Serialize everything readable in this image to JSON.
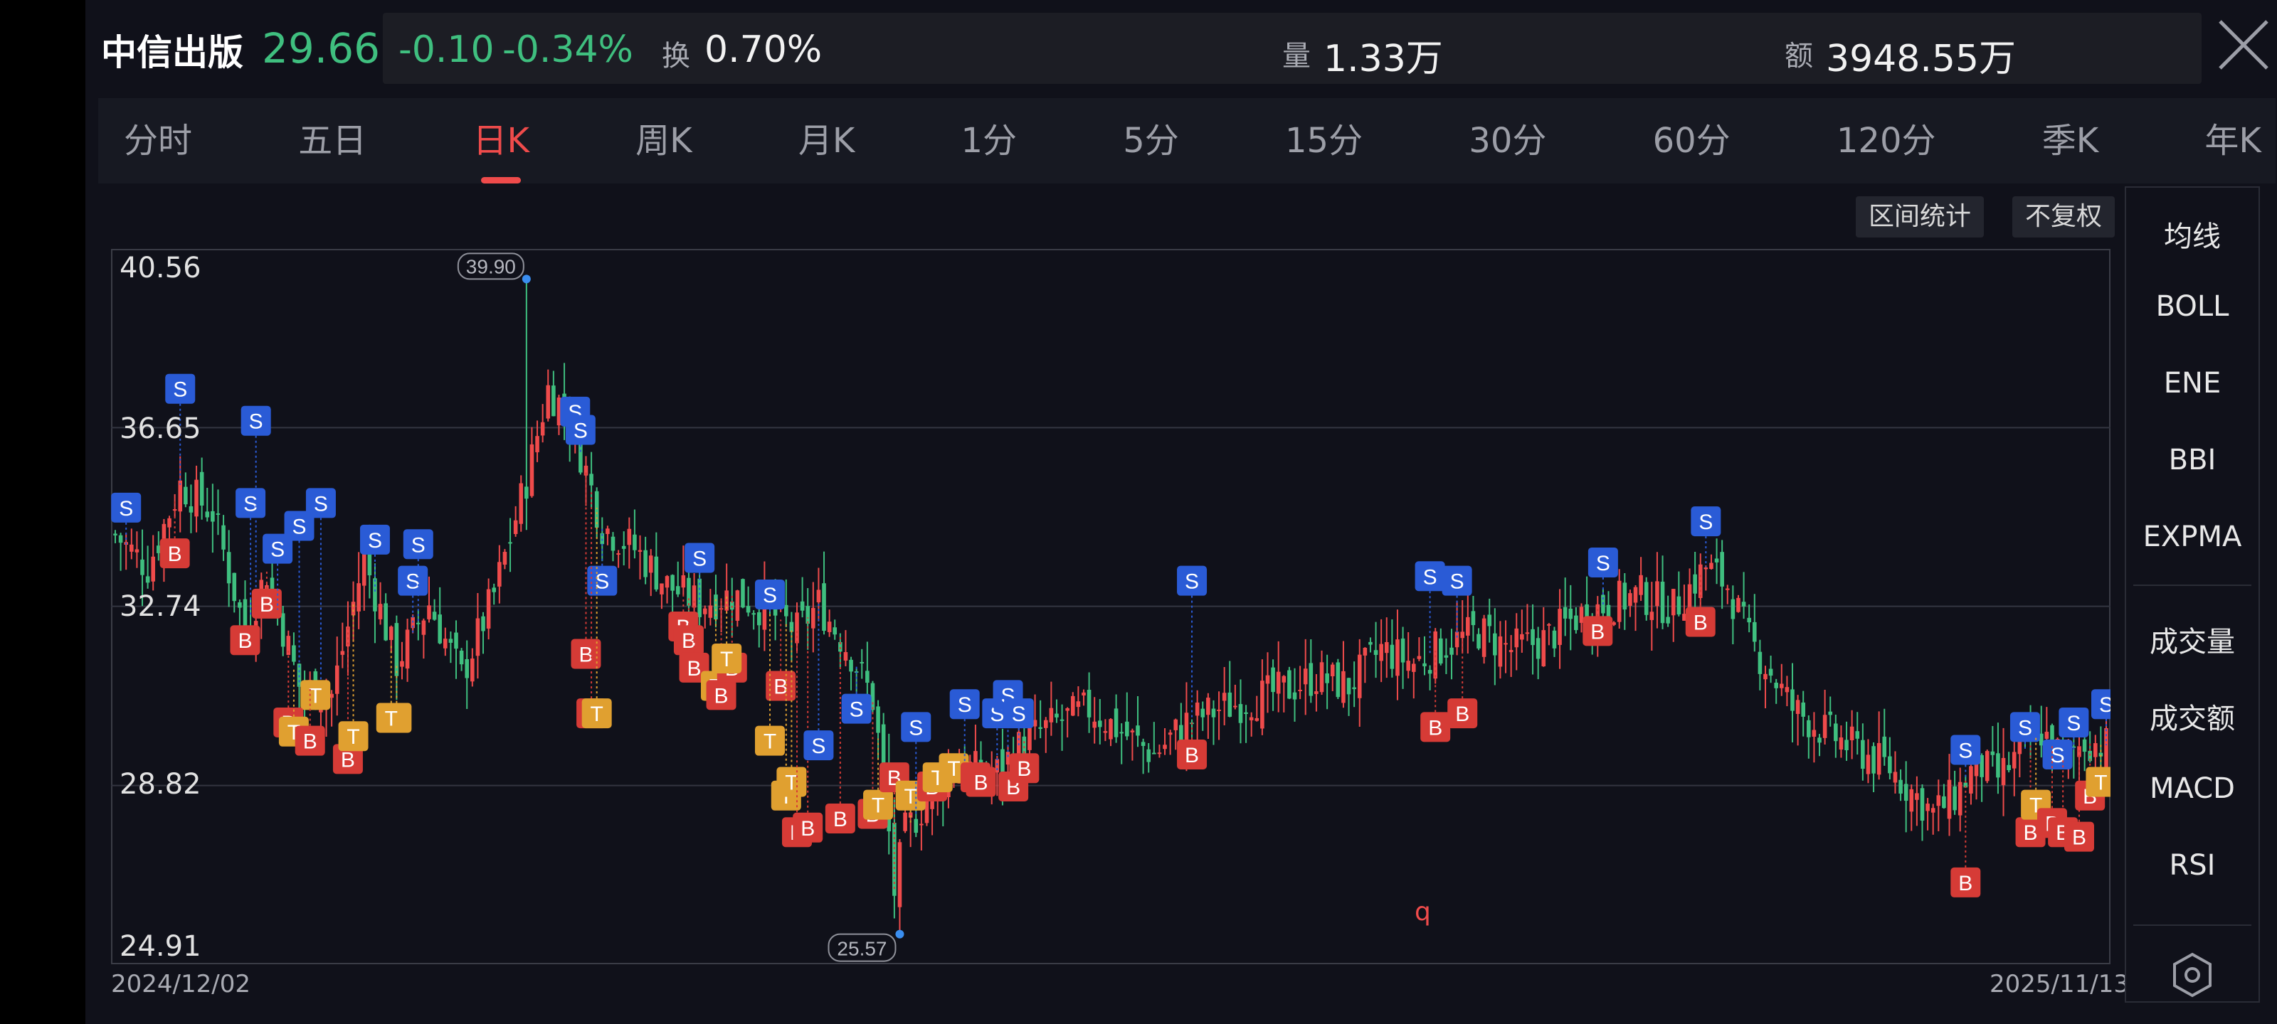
{
  "header": {
    "name": "中信出版",
    "price": "29.66",
    "change": "-0.10",
    "change_pct": "-0.34%",
    "turnover_label": "换",
    "turnover": "0.70%",
    "volume_label": "量",
    "volume": "1.33万",
    "amount_label": "额",
    "amount": "3948.55万"
  },
  "tabs": [
    "分时",
    "五日",
    "日K",
    "周K",
    "月K",
    "1分",
    "5分",
    "15分",
    "30分",
    "60分",
    "120分",
    "季K",
    "年K"
  ],
  "active_tab": "日K",
  "toolbar": {
    "range_stats": "区间统计",
    "adjust": "不复权"
  },
  "side_indicators_top": [
    "均线",
    "BOLL",
    "ENE",
    "BBI",
    "EXPMA"
  ],
  "side_indicators_bottom": [
    "成交量",
    "成交额",
    "MACD",
    "RSI"
  ],
  "annotation": "q",
  "colors": {
    "up": "#ef4b4b",
    "down": "#3fbf7f",
    "sell": "#2a5bd6",
    "buy": "#d63b36",
    "t": "#e0a030",
    "bg": "#10111a"
  },
  "chart_data": {
    "type": "candlestick",
    "y_ticks": [
      "40.56",
      "36.65",
      "32.74",
      "28.82",
      "24.91"
    ],
    "ylim": [
      24.91,
      40.56
    ],
    "x_start": "2024/12/02",
    "x_end": "2025/11/13",
    "max_label": "39.90",
    "min_label": "25.57",
    "close_path": [
      [
        0,
        34.3
      ],
      [
        6,
        33.6
      ],
      [
        12,
        35.4
      ],
      [
        18,
        34.8
      ],
      [
        24,
        32.2
      ],
      [
        28,
        33.5
      ],
      [
        34,
        31.0
      ],
      [
        40,
        30.8
      ],
      [
        46,
        33.8
      ],
      [
        52,
        31.5
      ],
      [
        58,
        32.8
      ],
      [
        64,
        31.2
      ],
      [
        70,
        33.0
      ],
      [
        76,
        35.5
      ],
      [
        80,
        37.5
      ],
      [
        84,
        36.9
      ],
      [
        90,
        34.5
      ],
      [
        96,
        34.0
      ],
      [
        102,
        33.2
      ],
      [
        108,
        32.8
      ],
      [
        114,
        33.0
      ],
      [
        120,
        32.7
      ],
      [
        126,
        32.2
      ],
      [
        130,
        32.8
      ],
      [
        136,
        31.7
      ],
      [
        140,
        30.7
      ],
      [
        142,
        29.0
      ],
      [
        144,
        26.5
      ],
      [
        146,
        27.8
      ],
      [
        150,
        28.5
      ],
      [
        156,
        29.3
      ],
      [
        162,
        29.0
      ],
      [
        168,
        29.8
      ],
      [
        174,
        30.2
      ],
      [
        180,
        30.5
      ],
      [
        186,
        30.0
      ],
      [
        192,
        29.5
      ],
      [
        198,
        30.2
      ],
      [
        204,
        30.5
      ],
      [
        210,
        30.7
      ],
      [
        216,
        30.9
      ],
      [
        222,
        31.2
      ],
      [
        228,
        31.0
      ],
      [
        234,
        31.8
      ],
      [
        240,
        31.5
      ],
      [
        246,
        31.9
      ],
      [
        252,
        32.2
      ],
      [
        258,
        31.8
      ],
      [
        264,
        32.0
      ],
      [
        270,
        32.5
      ],
      [
        276,
        32.8
      ],
      [
        282,
        33.0
      ],
      [
        288,
        32.7
      ],
      [
        294,
        33.6
      ],
      [
        298,
        33.2
      ],
      [
        302,
        32.0
      ],
      [
        306,
        31.3
      ],
      [
        310,
        30.5
      ],
      [
        316,
        30.0
      ],
      [
        322,
        29.6
      ],
      [
        328,
        29.2
      ],
      [
        332,
        28.7
      ],
      [
        336,
        28.2
      ],
      [
        340,
        28.6
      ],
      [
        344,
        29.3
      ],
      [
        348,
        29.0
      ],
      [
        352,
        29.5
      ],
      [
        356,
        30.0
      ],
      [
        360,
        29.4
      ],
      [
        364,
        29.8
      ],
      [
        368,
        29.7
      ]
    ],
    "max_point": [
      76,
      39.9
    ],
    "min_point": [
      145,
      25.57
    ],
    "n_days": 368,
    "signals": [
      {
        "t": "S",
        "d": 2,
        "v": 34.9
      },
      {
        "t": "S",
        "d": 12,
        "v": 37.5
      },
      {
        "t": "B",
        "d": 11,
        "v": 33.9
      },
      {
        "t": "B",
        "d": 24,
        "v": 32.0
      },
      {
        "t": "S",
        "d": 25,
        "v": 35.0
      },
      {
        "t": "S",
        "d": 26,
        "v": 36.8
      },
      {
        "t": "B",
        "d": 28,
        "v": 32.8
      },
      {
        "t": "S",
        "d": 30,
        "v": 34.0
      },
      {
        "t": "S",
        "d": 34,
        "v": 34.5
      },
      {
        "t": "S",
        "d": 38,
        "v": 35.0
      },
      {
        "t": "T",
        "d": 37,
        "v": 30.8
      },
      {
        "t": "B",
        "d": 32,
        "v": 30.2
      },
      {
        "t": "T",
        "d": 33,
        "v": 30.0
      },
      {
        "t": "B",
        "d": 36,
        "v": 29.8
      },
      {
        "t": "B",
        "d": 43,
        "v": 29.4
      },
      {
        "t": "T",
        "d": 44,
        "v": 29.9
      },
      {
        "t": "S",
        "d": 48,
        "v": 34.2
      },
      {
        "t": "S",
        "d": 55,
        "v": 33.3
      },
      {
        "t": "S",
        "d": 56,
        "v": 34.1
      },
      {
        "t": "T",
        "d": 52,
        "v": 30.3
      },
      {
        "t": "T",
        "d": 51,
        "v": 30.3
      },
      {
        "t": "S",
        "d": 85,
        "v": 37.0
      },
      {
        "t": "S",
        "d": 86,
        "v": 36.6
      },
      {
        "t": "S",
        "d": 90,
        "v": 33.3
      },
      {
        "t": "B",
        "d": 87,
        "v": 31.7
      },
      {
        "t": "B",
        "d": 88,
        "v": 30.4
      },
      {
        "t": "T",
        "d": 89,
        "v": 30.4
      },
      {
        "t": "B",
        "d": 105,
        "v": 32.3
      },
      {
        "t": "B",
        "d": 106,
        "v": 32.0
      },
      {
        "t": "B",
        "d": 107,
        "v": 31.4
      },
      {
        "t": "S",
        "d": 108,
        "v": 33.8
      },
      {
        "t": "T",
        "d": 111,
        "v": 31.0
      },
      {
        "t": "B",
        "d": 112,
        "v": 30.8
      },
      {
        "t": "B",
        "d": 114,
        "v": 31.4
      },
      {
        "t": "T",
        "d": 113,
        "v": 31.6
      },
      {
        "t": "S",
        "d": 121,
        "v": 33.0
      },
      {
        "t": "B",
        "d": 123,
        "v": 31.0
      },
      {
        "t": "T",
        "d": 121,
        "v": 29.8
      },
      {
        "t": "T",
        "d": 124,
        "v": 28.6
      },
      {
        "t": "T",
        "d": 125,
        "v": 28.9
      },
      {
        "t": "B",
        "d": 126,
        "v": 27.8
      },
      {
        "t": "B",
        "d": 128,
        "v": 27.9
      },
      {
        "t": "S",
        "d": 130,
        "v": 29.7
      },
      {
        "t": "S",
        "d": 137,
        "v": 30.5
      },
      {
        "t": "B",
        "d": 134,
        "v": 28.1
      },
      {
        "t": "B",
        "d": 140,
        "v": 28.2
      },
      {
        "t": "T",
        "d": 141,
        "v": 28.4
      },
      {
        "t": "B",
        "d": 144,
        "v": 29.0
      },
      {
        "t": "T",
        "d": 147,
        "v": 28.6
      },
      {
        "t": "S",
        "d": 148,
        "v": 30.1
      },
      {
        "t": "B",
        "d": 151,
        "v": 28.8
      },
      {
        "t": "T",
        "d": 152,
        "v": 29.0
      },
      {
        "t": "T",
        "d": 155,
        "v": 29.2
      },
      {
        "t": "S",
        "d": 157,
        "v": 30.6
      },
      {
        "t": "B",
        "d": 159,
        "v": 29.0
      },
      {
        "t": "B",
        "d": 160,
        "v": 28.9
      },
      {
        "t": "S",
        "d": 163,
        "v": 30.4
      },
      {
        "t": "S",
        "d": 165,
        "v": 30.8
      },
      {
        "t": "S",
        "d": 167,
        "v": 30.4
      },
      {
        "t": "B",
        "d": 166,
        "v": 28.8
      },
      {
        "t": "B",
        "d": 168,
        "v": 29.2
      },
      {
        "t": "S",
        "d": 199,
        "v": 33.3
      },
      {
        "t": "B",
        "d": 199,
        "v": 29.5
      },
      {
        "t": "S",
        "d": 243,
        "v": 33.4
      },
      {
        "t": "S",
        "d": 248,
        "v": 33.3
      },
      {
        "t": "B",
        "d": 244,
        "v": 30.1
      },
      {
        "t": "B",
        "d": 249,
        "v": 30.4
      },
      {
        "t": "S",
        "d": 275,
        "v": 33.7
      },
      {
        "t": "B",
        "d": 274,
        "v": 32.2
      },
      {
        "t": "S",
        "d": 294,
        "v": 34.6
      },
      {
        "t": "B",
        "d": 293,
        "v": 32.4
      },
      {
        "t": "S",
        "d": 342,
        "v": 29.6
      },
      {
        "t": "B",
        "d": 342,
        "v": 26.7
      },
      {
        "t": "S",
        "d": 353,
        "v": 30.1
      },
      {
        "t": "S",
        "d": 359,
        "v": 29.5
      },
      {
        "t": "S",
        "d": 362,
        "v": 30.2
      },
      {
        "t": "S",
        "d": 368,
        "v": 30.6
      },
      {
        "t": "B",
        "d": 354,
        "v": 27.8
      },
      {
        "t": "T",
        "d": 355,
        "v": 28.4
      },
      {
        "t": "B",
        "d": 358,
        "v": 28.0
      },
      {
        "t": "B",
        "d": 360,
        "v": 27.8
      },
      {
        "t": "B",
        "d": 363,
        "v": 27.7
      },
      {
        "t": "B",
        "d": 365,
        "v": 28.6
      },
      {
        "t": "T",
        "d": 367,
        "v": 28.9
      }
    ]
  }
}
